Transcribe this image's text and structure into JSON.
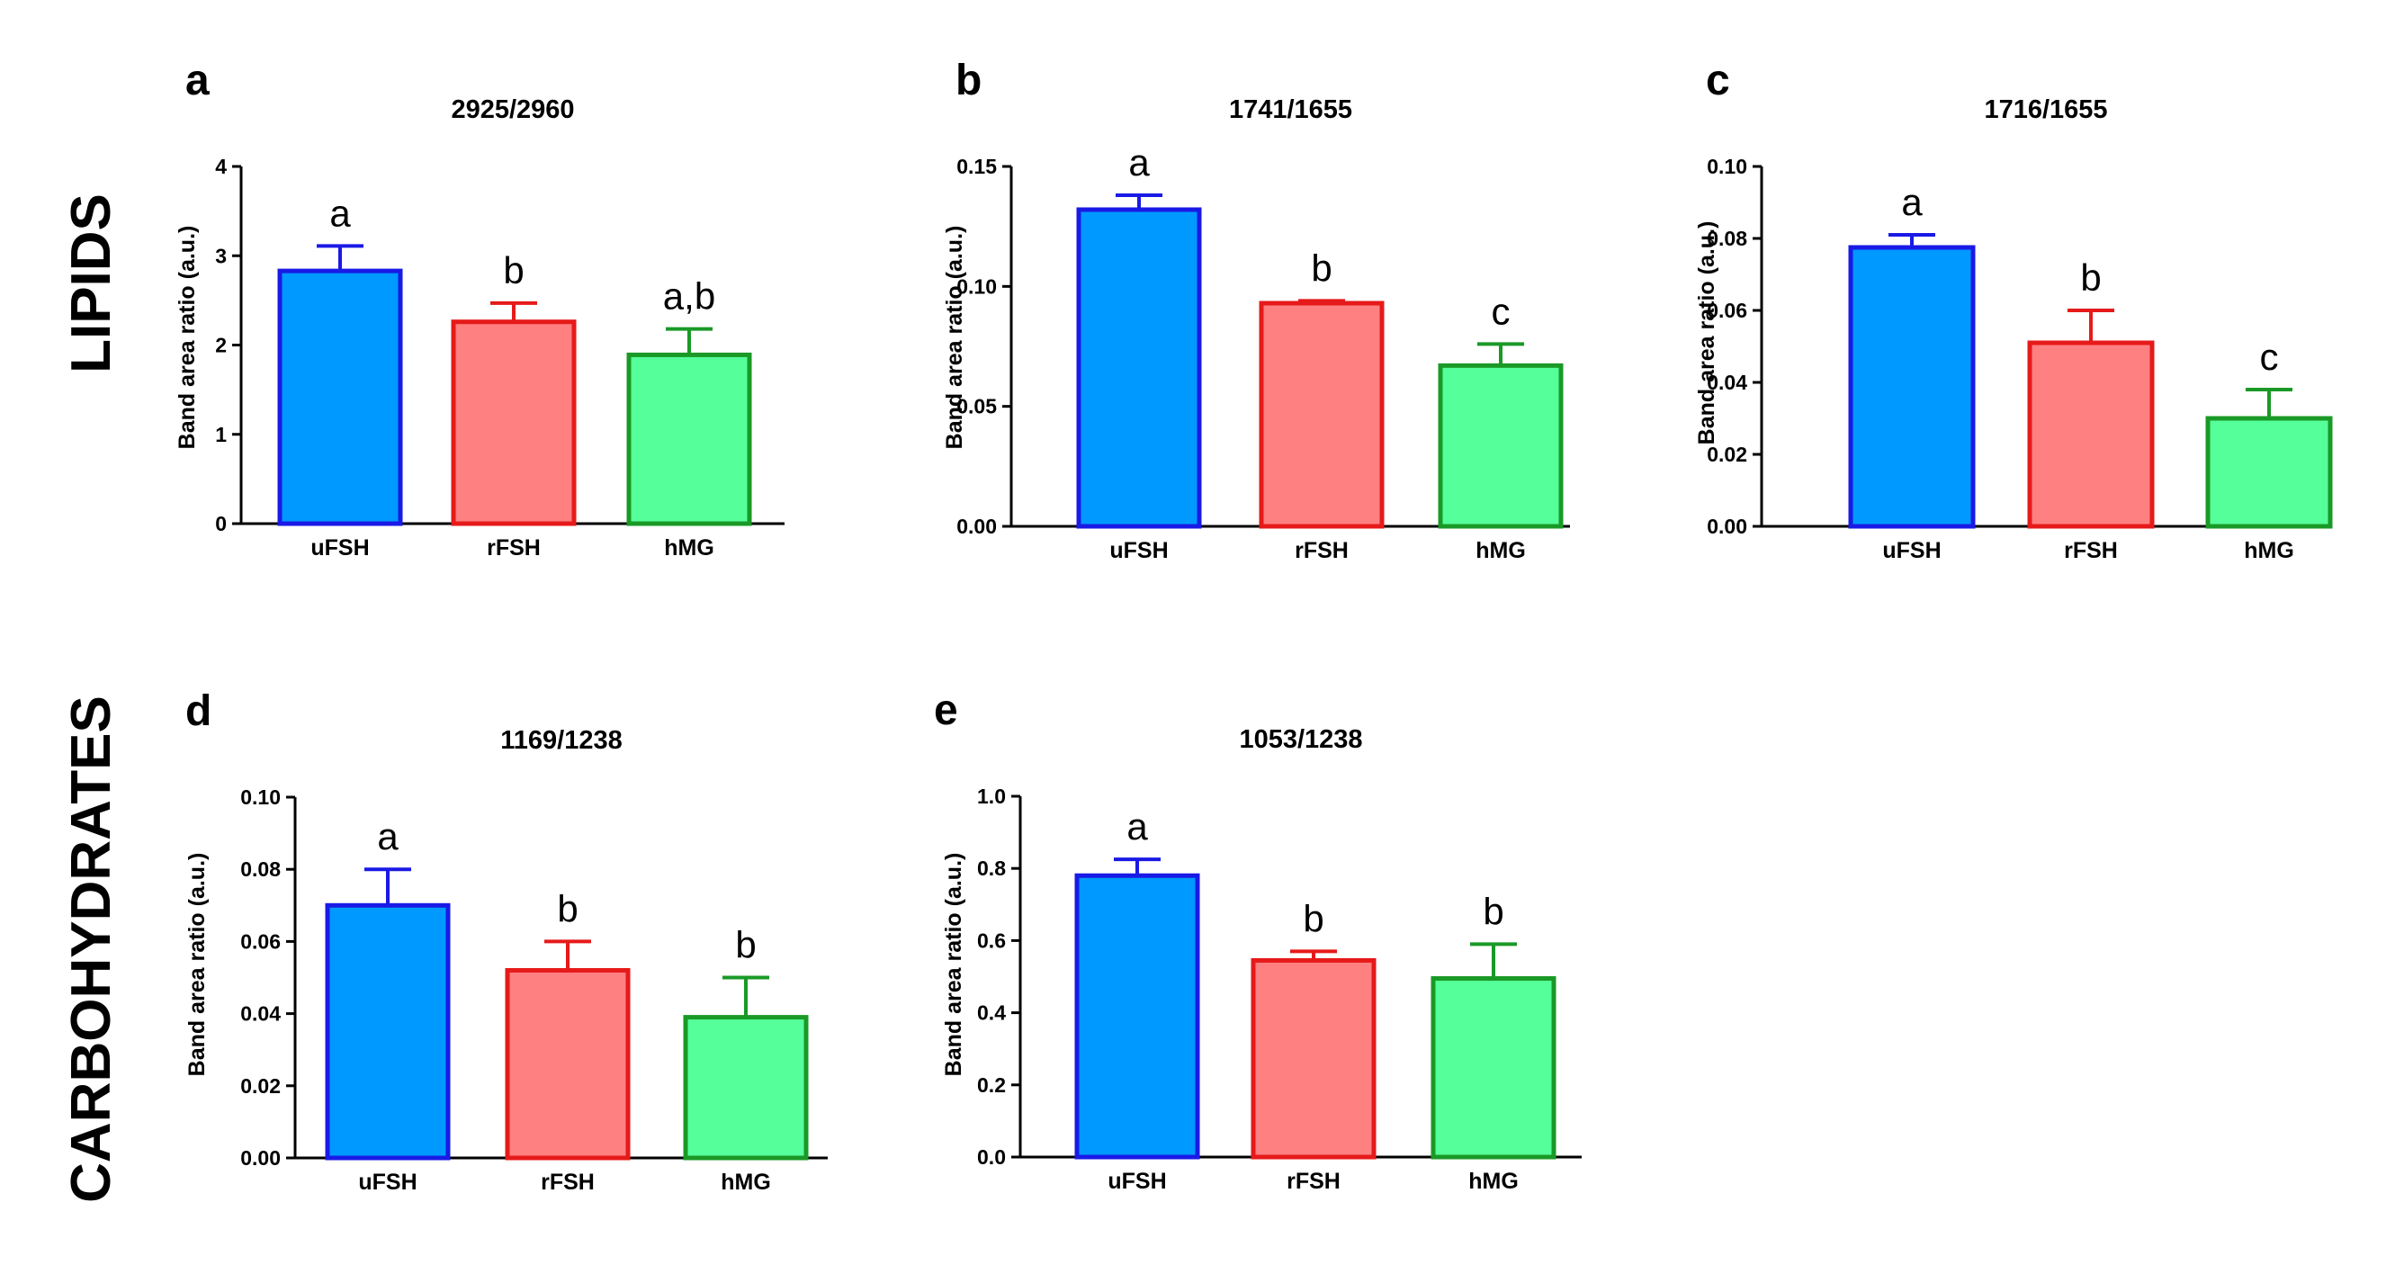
{
  "figure": {
    "row_labels": [
      "LIPIDS",
      "CARBOHYDRATES"
    ]
  },
  "style": {
    "categories": [
      "uFSH",
      "rFSH",
      "hMG"
    ],
    "fill_colors": [
      "#0099ff",
      "#ff8080",
      "#55ff99"
    ],
    "edge_colors": [
      "#1a1ae6",
      "#e61a1a",
      "#1a9926"
    ]
  },
  "chart_data": [
    {
      "panel": "a",
      "type": "bar",
      "title": "2925/2960",
      "ylabel": "Band area ratio (a.u.)",
      "xlabel": "",
      "categories": [
        "uFSH",
        "rFSH",
        "hMG"
      ],
      "values": [
        2.83,
        2.26,
        1.89
      ],
      "errors": [
        0.28,
        0.21,
        0.29
      ],
      "letters": [
        "a",
        "b",
        "a,b"
      ],
      "ylim": [
        0,
        4
      ],
      "yticks": [
        "0",
        "1",
        "2",
        "3",
        "4"
      ]
    },
    {
      "panel": "b",
      "type": "bar",
      "title": "1741/1655",
      "ylabel": "Band area ratio (a.u.)",
      "xlabel": "",
      "categories": [
        "uFSH",
        "rFSH",
        "hMG"
      ],
      "values": [
        0.132,
        0.093,
        0.067
      ],
      "errors": [
        0.006,
        0.001,
        0.009
      ],
      "letters": [
        "a",
        "b",
        "c"
      ],
      "ylim": [
        0,
        0.15
      ],
      "yticks": [
        "0.00",
        "0.05",
        "0.10",
        "0.15"
      ]
    },
    {
      "panel": "c",
      "type": "bar",
      "title": "1716/1655",
      "ylabel": "Band area ratio (a.u.)",
      "xlabel": "",
      "categories": [
        "uFSH",
        "rFSH",
        "hMG"
      ],
      "values": [
        0.0775,
        0.051,
        0.03
      ],
      "errors": [
        0.0035,
        0.009,
        0.008
      ],
      "letters": [
        "a",
        "b",
        "c"
      ],
      "ylim": [
        0,
        0.1
      ],
      "yticks": [
        "0.00",
        "0.02",
        "0.04",
        "0.06",
        "0.08",
        "0.10"
      ]
    },
    {
      "panel": "d",
      "type": "bar",
      "title": "1169/1238",
      "ylabel": "Band area ratio (a.u.)",
      "xlabel": "",
      "categories": [
        "uFSH",
        "rFSH",
        "hMG"
      ],
      "values": [
        0.07,
        0.052,
        0.039
      ],
      "errors": [
        0.01,
        0.008,
        0.011
      ],
      "letters": [
        "a",
        "b",
        "b"
      ],
      "ylim": [
        0,
        0.1
      ],
      "yticks": [
        "0.00",
        "0.02",
        "0.04",
        "0.06",
        "0.08",
        "0.10"
      ]
    },
    {
      "panel": "e",
      "type": "bar",
      "title": "1053/1238",
      "ylabel": "Band area ratio (a.u.)",
      "xlabel": "",
      "categories": [
        "uFSH",
        "rFSH",
        "hMG"
      ],
      "values": [
        0.78,
        0.545,
        0.495
      ],
      "errors": [
        0.045,
        0.025,
        0.095
      ],
      "letters": [
        "a",
        "b",
        "b"
      ],
      "ylim": [
        0,
        1.0
      ],
      "yticks": [
        "0.0",
        "0.2",
        "0.4",
        "0.6",
        "0.8",
        "1.0"
      ]
    }
  ]
}
